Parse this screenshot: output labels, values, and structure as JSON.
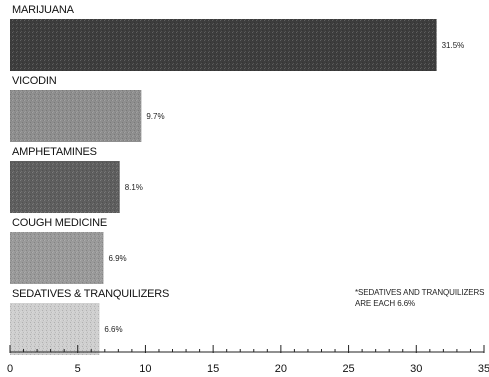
{
  "chart_data": {
    "type": "bar",
    "orientation": "horizontal",
    "categories": [
      "MARIJUANA",
      "VICODIN",
      "AMPHETAMINES",
      "COUGH MEDICINE",
      "SEDATIVES & TRANQUILIZERS"
    ],
    "values": [
      31.5,
      9.7,
      8.1,
      6.9,
      6.6
    ],
    "value_labels": [
      "31.5%",
      "9.7%",
      "8.1%",
      "6.9%",
      "6.6%"
    ],
    "xlim": [
      0,
      35
    ],
    "xticks": [
      0,
      5,
      10,
      15,
      20,
      25,
      30,
      35
    ],
    "grid": false,
    "bar_colors": [
      "#3d3d3d",
      "#8e8e8e",
      "#5e5e5e",
      "#9a9a9a",
      "#cfcfcf"
    ],
    "annotation": "*SEDATIVES AND TRANQUILIZERS ARE EACH 6.6%"
  }
}
